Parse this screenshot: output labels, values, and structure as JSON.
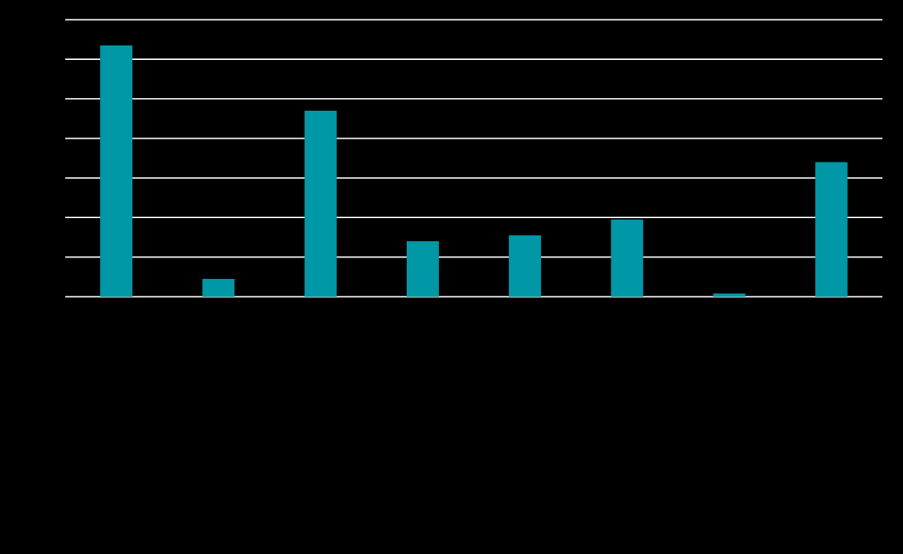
{
  "colors": {
    "background": "#000000",
    "bar": "#0097a7",
    "grid": "#ffffff"
  },
  "chart_data": {
    "type": "bar",
    "title": "",
    "xlabel": "",
    "ylabel": "",
    "categories": [
      "",
      "",
      "",
      "",
      "",
      "",
      "",
      ""
    ],
    "values": [
      6.35,
      0.45,
      4.7,
      1.4,
      1.55,
      1.95,
      0.08,
      3.4
    ],
    "ylim": [
      0,
      7
    ],
    "yticks": [
      0,
      1,
      2,
      3,
      4,
      5,
      6,
      7
    ],
    "grid": true,
    "legend": "none"
  }
}
